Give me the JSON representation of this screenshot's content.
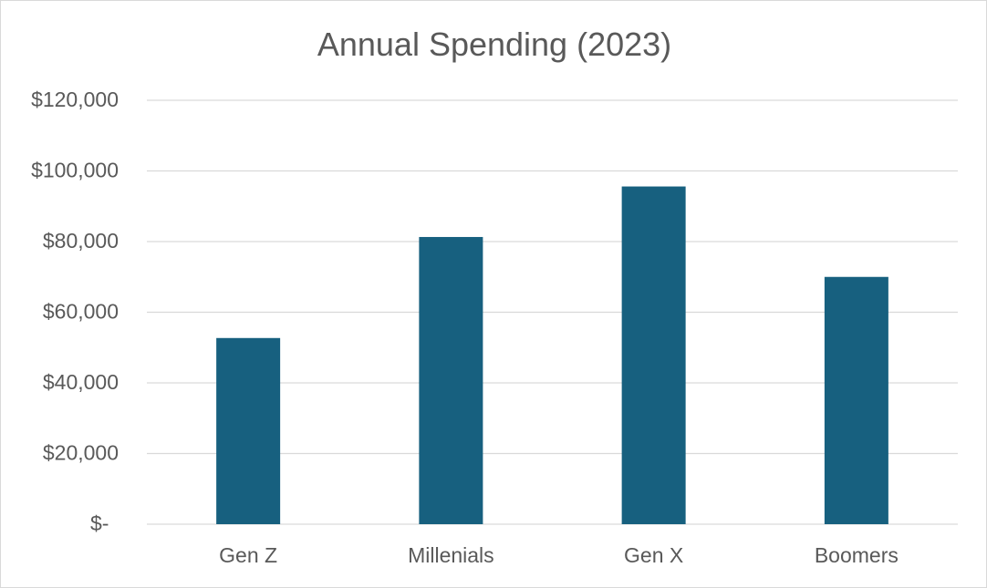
{
  "chart_data": {
    "type": "bar",
    "title": "Annual Spending (2023)",
    "xlabel": "",
    "ylabel": "",
    "categories": [
      "Gen Z",
      "Millenials",
      "Gen X",
      "Boomers"
    ],
    "values": [
      52700,
      81300,
      95600,
      70000
    ],
    "ylim": [
      0,
      120000
    ],
    "yticks": [
      0,
      20000,
      40000,
      60000,
      80000,
      100000,
      120000
    ],
    "ytick_labels": [
      "$-",
      "$20,000",
      "$40,000",
      "$60,000",
      "$80,000",
      "$100,000",
      "$120,000"
    ],
    "grid": true,
    "legend": "none",
    "bar_color": "#17607f"
  }
}
